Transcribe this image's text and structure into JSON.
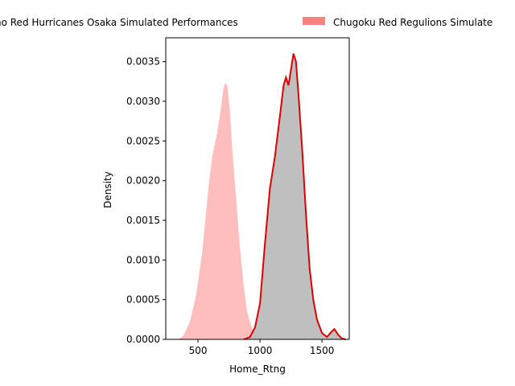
{
  "chart_data": {
    "type": "area",
    "title": "",
    "xlabel": "Home_Rtng",
    "ylabel": "Density",
    "xlim": [
      240,
      1720
    ],
    "ylim": [
      0,
      0.0038
    ],
    "xticks": [
      500,
      1000,
      1500
    ],
    "xtick_labels": [
      "500",
      "1000",
      "1500"
    ],
    "yticks": [
      0.0,
      0.0005,
      0.001,
      0.0015,
      0.002,
      0.0025,
      0.003,
      0.0035
    ],
    "ytick_labels": [
      "0.0000",
      "0.0005",
      "0.0010",
      "0.0015",
      "0.0020",
      "0.0025",
      "0.0030",
      "0.0035"
    ],
    "grid": false,
    "legend_placement": "top, above plot",
    "legend": [
      {
        "label": "no Red Hurricanes Osaka Simulated Performances",
        "color": "#ff8080"
      },
      {
        "label": "Chugoku Red Regulions Simulate",
        "color": "#ff8080"
      }
    ],
    "series": [
      {
        "fill": "#ffbaba",
        "line": "#ffffff",
        "x": [
          330,
          380,
          430,
          480,
          530,
          580,
          610,
          650,
          680,
          700,
          720,
          740,
          760,
          780,
          810,
          840,
          870,
          900,
          940,
          980,
          1020,
          1060,
          1100
        ],
        "y": [
          0,
          5e-05,
          0.00022,
          0.00055,
          0.0011,
          0.0019,
          0.0023,
          0.0026,
          0.0029,
          0.00315,
          0.00325,
          0.0032,
          0.0029,
          0.0024,
          0.0018,
          0.0012,
          0.0007,
          0.00035,
          0.00014,
          5e-05,
          2e-05,
          5e-06,
          0
        ]
      },
      {
        "fill": "#bcbcbc",
        "line": "#dd0000",
        "x": [
          870,
          920,
          960,
          1000,
          1040,
          1080,
          1120,
          1160,
          1190,
          1210,
          1230,
          1250,
          1270,
          1290,
          1310,
          1340,
          1370,
          1400,
          1430,
          1460,
          1500,
          1540,
          1580,
          1600,
          1630,
          1660,
          1690
        ],
        "y": [
          0,
          3e-05,
          0.00015,
          0.00045,
          0.0012,
          0.0019,
          0.0023,
          0.0028,
          0.0032,
          0.0033,
          0.0032,
          0.0034,
          0.0036,
          0.0035,
          0.0031,
          0.0024,
          0.0016,
          0.0009,
          0.0005,
          0.00025,
          8e-05,
          3e-05,
          0.0001,
          0.00013,
          6e-05,
          1e-05,
          0
        ]
      }
    ]
  }
}
